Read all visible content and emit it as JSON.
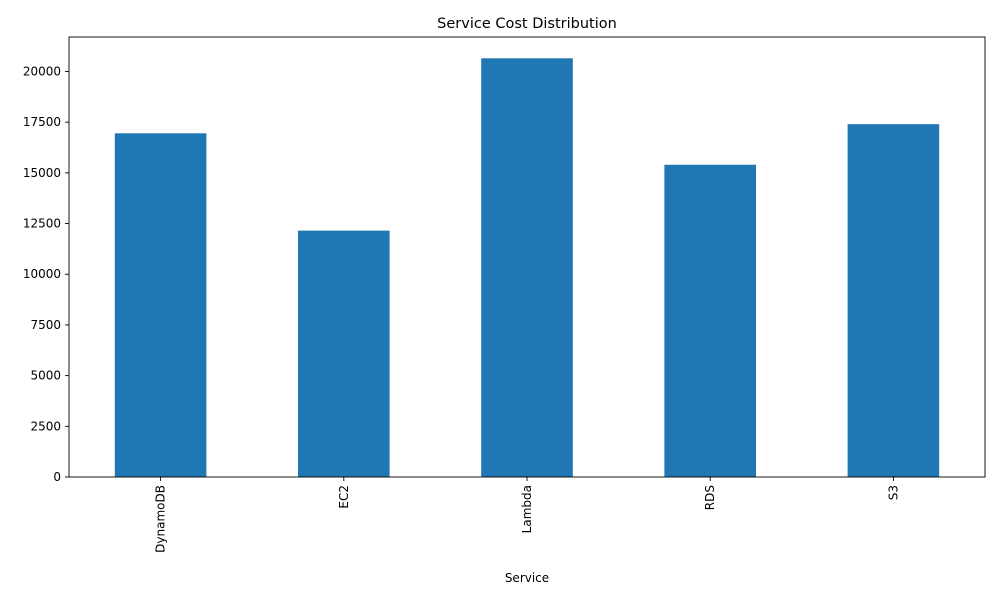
{
  "chart_data": {
    "type": "bar",
    "title": "Service Cost Distribution",
    "xlabel": "Service",
    "ylabel": "",
    "categories": [
      "DynamoDB",
      "EC2",
      "Lambda",
      "RDS",
      "S3"
    ],
    "values": [
      16950,
      12150,
      20650,
      15400,
      17400
    ],
    "ylim": [
      0,
      21700
    ],
    "yticks": [
      0,
      2500,
      5000,
      7500,
      10000,
      12500,
      15000,
      17500,
      20000
    ],
    "bar_color": "#1f77b4",
    "grid": false,
    "legend": "none"
  }
}
